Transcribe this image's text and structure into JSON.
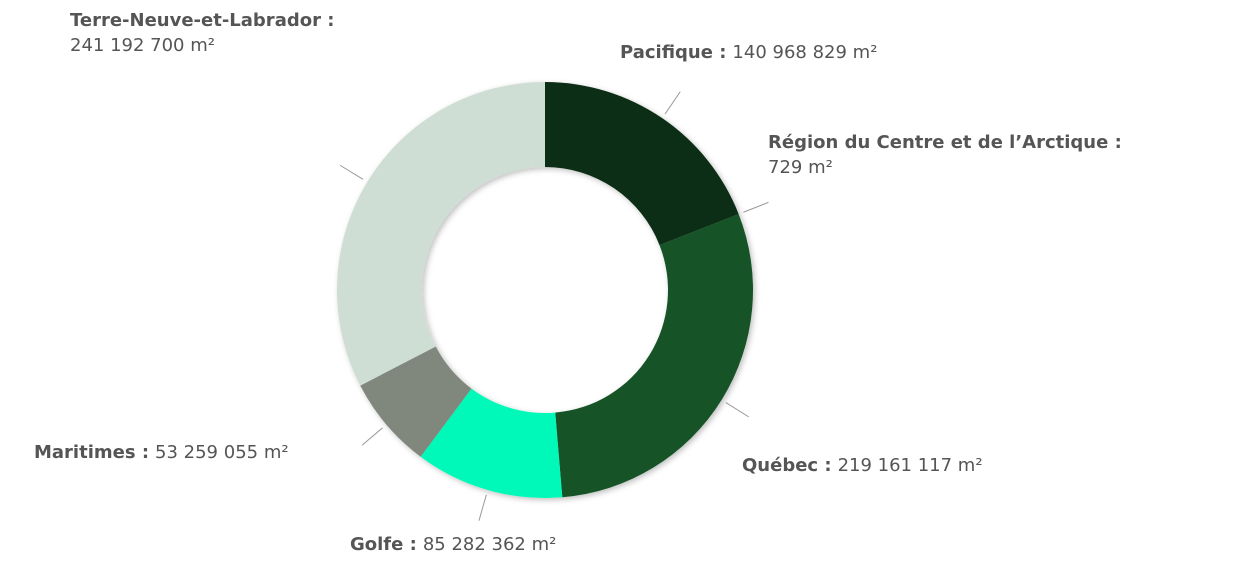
{
  "chart_data": {
    "type": "donut",
    "categories": [
      "Pacifique :",
      "Région du Centre et de l’Arctique :",
      "Québec :",
      "Golfe :",
      "Maritimes :",
      "Terre-Neuve-et-Labrador :"
    ],
    "values": [
      140968829,
      729,
      219161117,
      85282362,
      53259055,
      241192700
    ],
    "value_labels": [
      "140 968 829 m²",
      "729 m²",
      "219 161 117 m²",
      "85 282 362 m²",
      "53 259 055 m²",
      "241 192 700 m²"
    ],
    "colors": [
      "#0a2e14",
      "#0a2e14",
      "#145226",
      "#00f9b8",
      "#80877c",
      "#cfded4"
    ]
  }
}
